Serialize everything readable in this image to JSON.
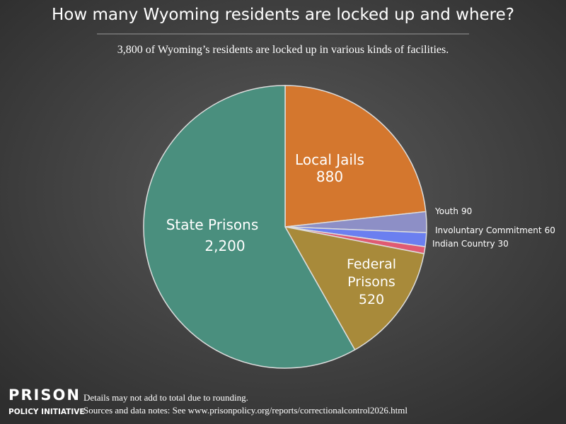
{
  "chart_data": {
    "type": "pie",
    "title": "How many Wyoming residents are locked up and where?",
    "subtitle": "3,800 of Wyoming’s residents are locked up in various kinds of facilities.",
    "categories": [
      "Local Jails",
      "Youth",
      "Involuntary Commitment",
      "Indian Country",
      "Federal Prisons",
      "State Prisons"
    ],
    "values": [
      880,
      90,
      60,
      30,
      520,
      2200
    ],
    "value_labels": [
      "880",
      "90",
      "60",
      "30",
      "520",
      "2,200"
    ],
    "colors": [
      "#d4772e",
      "#8d8fc6",
      "#6b7ff0",
      "#e05a72",
      "#a88a3a",
      "#4a8f7e"
    ]
  },
  "logo": {
    "line1": "PRISON",
    "line2": "POLICY INITIATIVE"
  },
  "notes": [
    "Details may not add to total due to rounding.",
    "Sources and data notes: See www.prisonpolicy.org/reports/correctionalcontrol2026.html"
  ]
}
